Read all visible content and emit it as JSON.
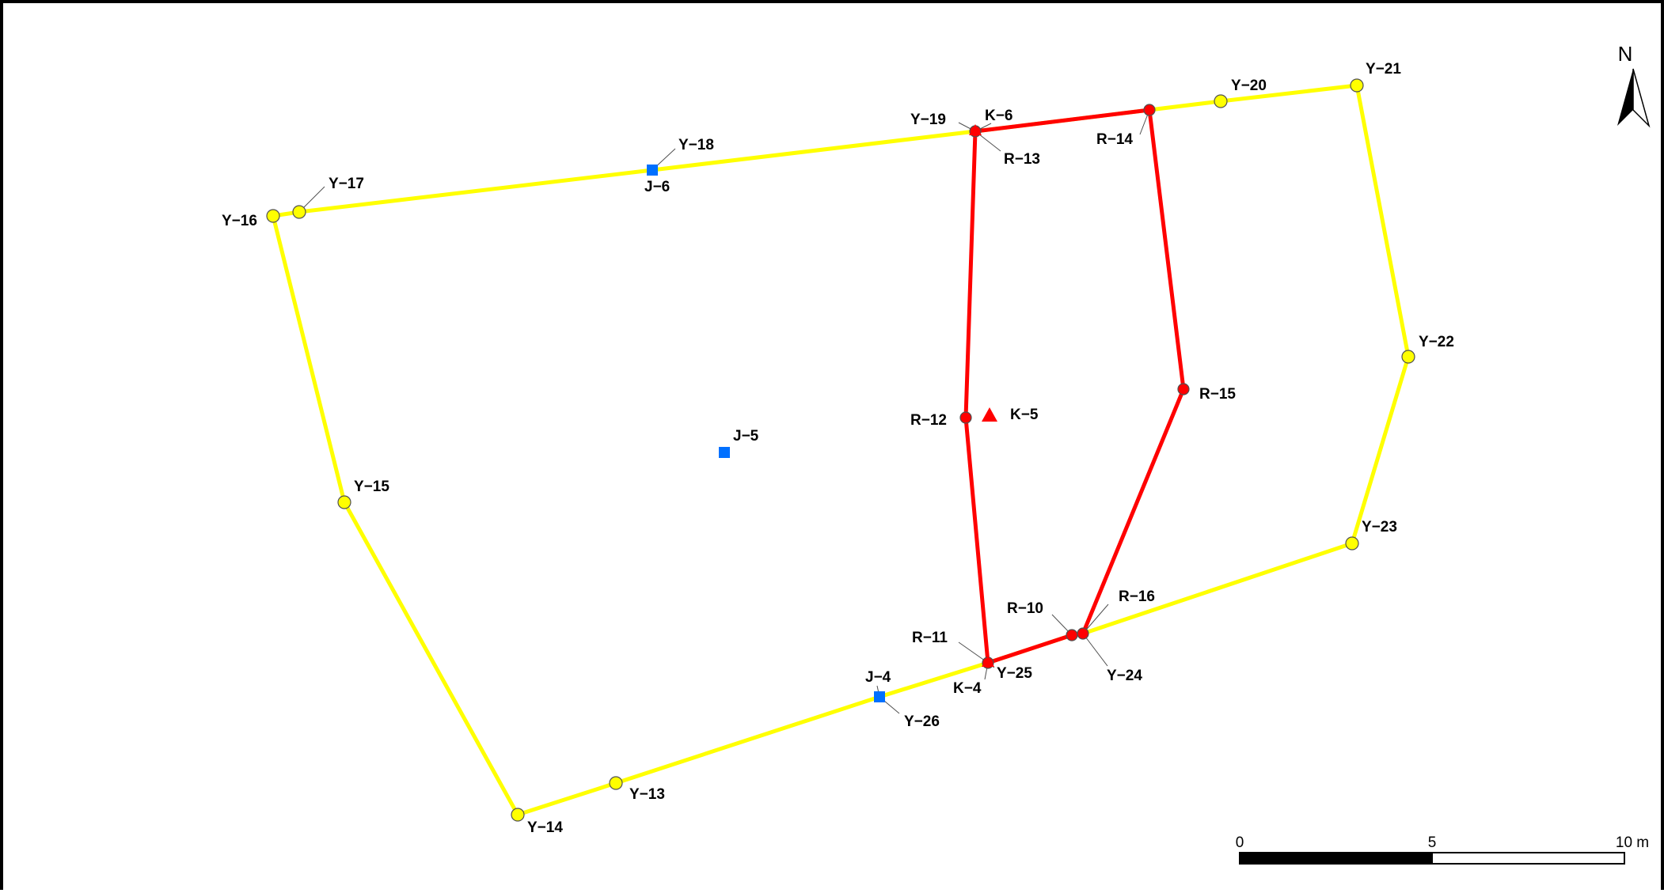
{
  "colors": {
    "boundary_line": "#ffff00",
    "site_line": "#ff0000",
    "yellow_point": "#ffff00",
    "red_point": "#ff0000",
    "blue_point": "#0070ff"
  },
  "north_arrow": {
    "label": "N",
    "icon": "north-arrow-icon"
  },
  "scale_bar": {
    "ticks": [
      "0",
      "5",
      "10 m"
    ]
  },
  "boundary": {
    "points": [
      {
        "id": "Y-13",
        "label": "Y−13",
        "symbol": "yellow-circle"
      },
      {
        "id": "Y-14",
        "label": "Y−14",
        "symbol": "yellow-circle"
      },
      {
        "id": "Y-15",
        "label": "Y−15",
        "symbol": "yellow-circle"
      },
      {
        "id": "Y-16",
        "label": "Y−16",
        "symbol": "yellow-circle"
      },
      {
        "id": "Y-17",
        "label": "Y−17",
        "symbol": "yellow-circle"
      },
      {
        "id": "Y-18",
        "label": "Y−18",
        "symbol": "none"
      },
      {
        "id": "Y-19",
        "label": "Y−19",
        "symbol": "none"
      },
      {
        "id": "Y-20",
        "label": "Y−20",
        "symbol": "yellow-circle"
      },
      {
        "id": "Y-21",
        "label": "Y−21",
        "symbol": "yellow-circle"
      },
      {
        "id": "Y-22",
        "label": "Y−22",
        "symbol": "yellow-circle"
      },
      {
        "id": "Y-23",
        "label": "Y−23",
        "symbol": "yellow-circle"
      },
      {
        "id": "Y-24",
        "label": "Y−24",
        "symbol": "none"
      },
      {
        "id": "Y-25",
        "label": "Y−25",
        "symbol": "none"
      },
      {
        "id": "Y-26",
        "label": "Y−26",
        "symbol": "none"
      }
    ]
  },
  "site": {
    "points": [
      {
        "id": "R-10",
        "label": "R−10",
        "symbol": "red-circle"
      },
      {
        "id": "R-11",
        "label": "R−11",
        "symbol": "red-circle"
      },
      {
        "id": "R-12",
        "label": "R−12",
        "symbol": "red-circle"
      },
      {
        "id": "R-13",
        "label": "R−13",
        "symbol": "red-circle"
      },
      {
        "id": "R-14",
        "label": "R−14",
        "symbol": "red-circle"
      },
      {
        "id": "R-15",
        "label": "R−15",
        "symbol": "red-circle"
      },
      {
        "id": "R-16",
        "label": "R−16",
        "symbol": "red-circle"
      }
    ]
  },
  "benchmarks": [
    {
      "id": "K-4",
      "label": "K−4",
      "symbol": "red-triangle"
    },
    {
      "id": "K-5",
      "label": "K−5",
      "symbol": "red-triangle"
    },
    {
      "id": "K-6",
      "label": "K−6",
      "symbol": "red-triangle"
    }
  ],
  "control_points": [
    {
      "id": "J-4",
      "label": "J−4",
      "symbol": "blue-square"
    },
    {
      "id": "J-5",
      "label": "J−5",
      "symbol": "blue-square"
    },
    {
      "id": "J-6",
      "label": "J−6",
      "symbol": "blue-square"
    }
  ]
}
